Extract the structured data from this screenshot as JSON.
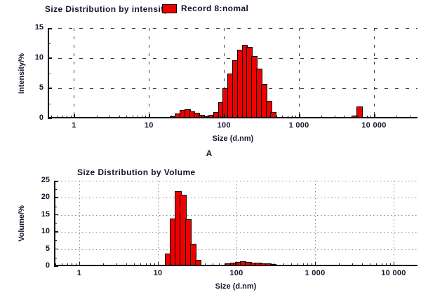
{
  "panel_label": "A",
  "colors": {
    "bar_fill": "#ee0000",
    "bar_border": "#000000",
    "axis": "#161616",
    "text": "#15152e",
    "background": "#ffffff"
  },
  "chart_data": [
    {
      "type": "bar",
      "title": "Size Distribution by intensity",
      "legend": {
        "label": "Record 8:nomal",
        "swatch_color": "#ee0000"
      },
      "xlabel": "Size (d.nm)",
      "ylabel": "Intensity/%",
      "x_scale": "log",
      "ylim": [
        0,
        15
      ],
      "y_tick_step": 5,
      "y_minor_step": 2.5,
      "grid_style": "dashed",
      "x_ticks": [
        {
          "value": 1,
          "label": "1"
        },
        {
          "value": 10,
          "label": "10"
        },
        {
          "value": 100,
          "label": "100"
        },
        {
          "value": 1000,
          "label": "1 000"
        },
        {
          "value": 10000,
          "label": "10 000"
        }
      ],
      "bins_nm": [
        21.0,
        24.4,
        28.2,
        32.7,
        37.8,
        43.8,
        50.7,
        58.7,
        68.1,
        78.8,
        91.3,
        105.7,
        122.4,
        141.8,
        164.2,
        190.1,
        220.2,
        255.0,
        295.3,
        342.0,
        396.1,
        458.7,
        5560,
        6440
      ],
      "values_pct": [
        0.3,
        0.8,
        1.4,
        1.5,
        1.2,
        0.9,
        0.6,
        0.4,
        0.6,
        1.1,
        2.7,
        5.0,
        7.4,
        9.7,
        11.4,
        12.2,
        11.9,
        10.3,
        8.2,
        5.7,
        2.9,
        1.1,
        0.5,
        2.0
      ]
    },
    {
      "type": "bar",
      "title": "Size Distribution by Volume",
      "xlabel": "Size (d.nm)",
      "ylabel": "Volume/%",
      "x_scale": "log",
      "ylim": [
        0,
        25
      ],
      "y_tick_step": 5,
      "y_minor_step": 2.5,
      "grid_style": "dotted",
      "x_ticks": [
        {
          "value": 1,
          "label": "1"
        },
        {
          "value": 10,
          "label": "10"
        },
        {
          "value": 100,
          "label": "100"
        },
        {
          "value": 1000,
          "label": "1 000"
        },
        {
          "value": 10000,
          "label": "10 000"
        }
      ],
      "bins_nm": [
        13.5,
        15.7,
        18.2,
        21.0,
        24.4,
        28.2,
        32.7,
        37.8,
        43.8,
        58.7,
        68.1,
        78.8,
        91.3,
        105.7,
        122.4,
        141.8,
        164.2,
        190.1,
        220.2,
        255.0,
        295.3,
        342.0,
        396.1,
        458.7,
        5560,
        6440
      ],
      "values_pct": [
        3.7,
        14.0,
        22.0,
        20.9,
        13.7,
        6.5,
        1.9,
        0.5,
        0.2,
        0.3,
        0.5,
        0.8,
        1.1,
        1.3,
        1.4,
        1.3,
        1.1,
        1.0,
        0.9,
        0.8,
        0.7,
        0.5,
        0.4,
        0.3,
        0.2,
        0.3
      ]
    }
  ]
}
